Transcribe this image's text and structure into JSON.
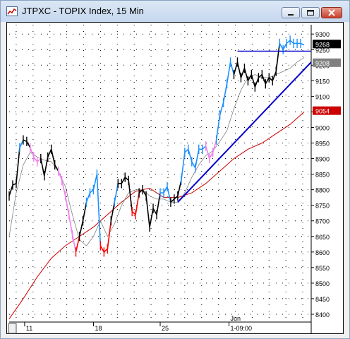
{
  "window": {
    "title": "JTPXC - TOPIX Index, 15 Min",
    "title_icon": "chart-app-icon",
    "controls": [
      "minimize-icon",
      "maximize-icon",
      "close-icon"
    ]
  },
  "chart_data": {
    "type": "line",
    "title": "JTPXC - TOPIX Index, 15 Min",
    "ylim": [
      8375,
      9330
    ],
    "yticks": [
      8400,
      8450,
      8500,
      8550,
      8600,
      8650,
      8700,
      8750,
      8800,
      8850,
      8900,
      8950,
      9000,
      9050,
      9100,
      9150,
      9200,
      9250,
      9300
    ],
    "ytick_labels": [
      "8400",
      "8450",
      "8500",
      "8550",
      "8600",
      "8650",
      "8700",
      "8750",
      "8800",
      "8850",
      "8900",
      "8950",
      "9000",
      "9050",
      "9100",
      "9150",
      "9200",
      "9250",
      "9300"
    ],
    "xlim": [
      0,
      430
    ],
    "xticks": [
      {
        "x": 22,
        "label": "11"
      },
      {
        "x": 120,
        "label": "18"
      },
      {
        "x": 215,
        "label": "25"
      },
      {
        "x": 313,
        "label": "1-09:00"
      }
    ],
    "period_label": {
      "x": 313,
      "label": "Jun"
    },
    "price_labels": [
      {
        "value": 9268,
        "text": "9268",
        "color": "#000000"
      },
      {
        "value": 9208,
        "text": "9208",
        "color": "#808080"
      },
      {
        "value": 9054,
        "text": "9054",
        "color": "#cc0000"
      }
    ],
    "grid": true,
    "colors": {
      "up": "#1e90ff",
      "down": "#000000",
      "weak": "#ee82ee",
      "strong_down": "#ff0000",
      "ma_long": "#cc0000",
      "ma_short": "#808080",
      "trendline": "#0000cc"
    },
    "price_series": {
      "name": "",
      "x": [
        0,
        5,
        10,
        15,
        20,
        25,
        30,
        35,
        40,
        45,
        50,
        55,
        60,
        65,
        70,
        75,
        80,
        85,
        90,
        95,
        100,
        105,
        110,
        115,
        120,
        125,
        130,
        135,
        140,
        145,
        150,
        155,
        160,
        165,
        170,
        175,
        180,
        185,
        190,
        195,
        200,
        205,
        210,
        215,
        220,
        225,
        230,
        235,
        240,
        245,
        250,
        255,
        260,
        265,
        270,
        275,
        280,
        285,
        290,
        295,
        300,
        305,
        310,
        315,
        320,
        325,
        330,
        335,
        340,
        345,
        350,
        355,
        360,
        365,
        370,
        375,
        380,
        385,
        390,
        395,
        400,
        405,
        410,
        415,
        420
      ],
      "values": [
        8780,
        8815,
        8820,
        8935,
        8960,
        8955,
        8935,
        8905,
        8890,
        8900,
        8845,
        8905,
        8930,
        8880,
        8860,
        8830,
        8780,
        8720,
        8655,
        8600,
        8650,
        8700,
        8760,
        8790,
        8800,
        8850,
        8620,
        8600,
        8610,
        8700,
        8760,
        8820,
        8820,
        8840,
        8830,
        8730,
        8720,
        8790,
        8800,
        8780,
        8680,
        8740,
        8720,
        8790,
        8790,
        8810,
        8760,
        8770,
        8780,
        8830,
        8920,
        8930,
        8890,
        8870,
        8930,
        8930,
        8940,
        8900,
        8920,
        8960,
        9040,
        9080,
        9140,
        9210,
        9170,
        9210,
        9160,
        9190,
        9150,
        9170,
        9130,
        9160,
        9170,
        9140,
        9160,
        9150,
        9180,
        9270,
        9250,
        9270,
        9280,
        9270,
        9270,
        9270,
        9265
      ],
      "bar_colors": [
        "down",
        "down",
        "down",
        "up",
        "down",
        "down",
        "weak",
        "weak",
        "weak",
        "down",
        "down",
        "down",
        "down",
        "down",
        "weak",
        "weak",
        "weak",
        "weak",
        "weak",
        "strong_down",
        "down",
        "down",
        "up",
        "up",
        "up",
        "up",
        "strong_down",
        "strong_down",
        "strong_down",
        "down",
        "up",
        "down",
        "down",
        "down",
        "down",
        "strong_down",
        "strong_down",
        "down",
        "down",
        "down",
        "down",
        "down",
        "down",
        "up",
        "up",
        "up",
        "down",
        "down",
        "down",
        "up",
        "up",
        "up",
        "up",
        "up",
        "up",
        "up",
        "weak",
        "weak",
        "weak",
        "up",
        "up",
        "up",
        "up",
        "up",
        "down",
        "down",
        "down",
        "down",
        "down",
        "down",
        "down",
        "down",
        "down",
        "down",
        "down",
        "down",
        "down",
        "up",
        "up",
        "up",
        "up",
        "up",
        "up",
        "up",
        "up"
      ]
    },
    "ma_short": {
      "name": "",
      "x": [
        0,
        10,
        20,
        30,
        40,
        50,
        60,
        70,
        80,
        90,
        100,
        110,
        120,
        130,
        140,
        150,
        160,
        170,
        180,
        190,
        200,
        210,
        220,
        230,
        240,
        250,
        260,
        270,
        280,
        290,
        300,
        310,
        320,
        330,
        340,
        350,
        360,
        370,
        380,
        390,
        400,
        410,
        420
      ],
      "values": [
        8650,
        8790,
        8880,
        8920,
        8905,
        8895,
        8890,
        8860,
        8810,
        8720,
        8640,
        8620,
        8650,
        8700,
        8650,
        8690,
        8750,
        8790,
        8800,
        8800,
        8780,
        8770,
        8770,
        8760,
        8760,
        8790,
        8840,
        8880,
        8910,
        8925,
        8955,
        8990,
        9060,
        9120,
        9160,
        9170,
        9160,
        9160,
        9170,
        9180,
        9190,
        9210,
        9225
      ]
    },
    "ma_long": {
      "name": "",
      "x": [
        0,
        20,
        40,
        60,
        80,
        100,
        120,
        140,
        160,
        180,
        200,
        220,
        240,
        260,
        280,
        300,
        320,
        340,
        360,
        380,
        400,
        420
      ],
      "values": [
        8385,
        8450,
        8520,
        8580,
        8620,
        8650,
        8680,
        8720,
        8760,
        8795,
        8805,
        8775,
        8775,
        8790,
        8820,
        8860,
        8900,
        8930,
        8950,
        8980,
        9010,
        9050
      ]
    },
    "annotations": [
      {
        "type": "horizontal_line",
        "x": [
          325,
          430
        ],
        "y": 9245,
        "color": "#0000cc"
      },
      {
        "type": "trendline",
        "x": [
          240,
          430
        ],
        "y": [
          8760,
          9210
        ],
        "color": "#0000cc"
      }
    ]
  }
}
